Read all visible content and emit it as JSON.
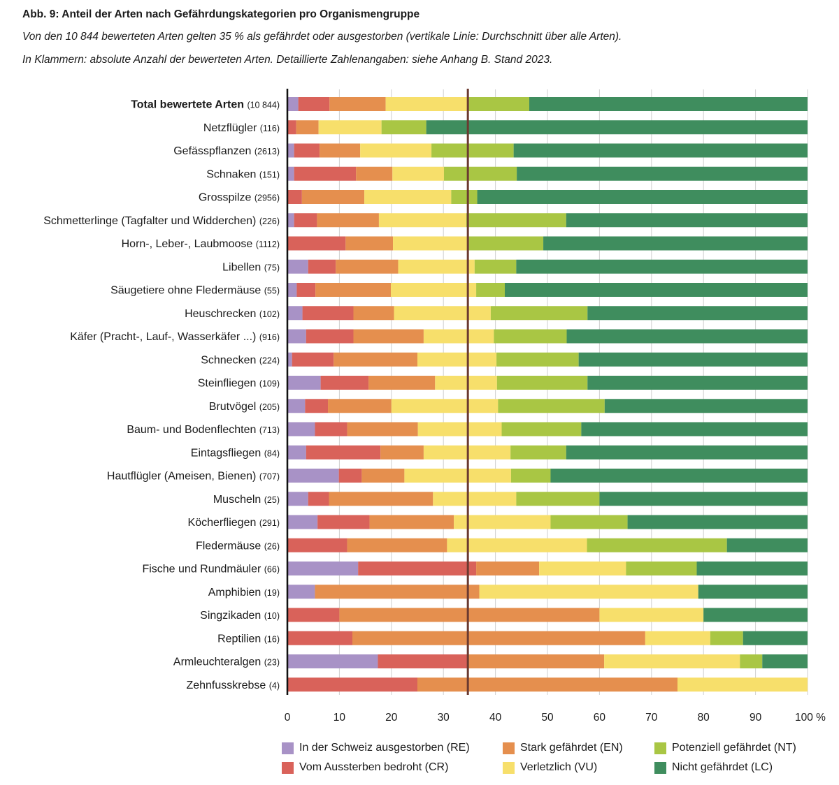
{
  "header": {
    "title": "Abb. 9: Anteil der Arten nach Gefährdungskategorien pro Organismengruppe",
    "subtitle_1": "Von den 10 844 bewerteten Arten gelten 35 % als gefährdet oder ausgestorben (vertikale Linie: Durchschnitt über alle Arten).",
    "subtitle_2": "In Klammern: absolute Anzahl der bewerteten Arten. Detaillierte Zahlenangaben: siehe Anhang B. Stand 2023."
  },
  "colors": {
    "RE": "#a892c6",
    "CR": "#d9625a",
    "EN": "#e58f4e",
    "VU": "#f7df6b",
    "NT": "#a9c644",
    "LC": "#3f8d5e",
    "average_line": "#6b3a30",
    "grid": "#cfcfcf",
    "axis": "#111111"
  },
  "chart_data": {
    "type": "bar",
    "orientation": "horizontal",
    "stacked": true,
    "xlabel": "",
    "ylabel": "",
    "xlim": [
      0,
      100
    ],
    "x_ticks": [
      0,
      10,
      20,
      30,
      40,
      50,
      60,
      70,
      80,
      90,
      100
    ],
    "x_tick_labels": [
      "0",
      "10",
      "20",
      "30",
      "40",
      "50",
      "60",
      "70",
      "80",
      "90",
      "100 %"
    ],
    "grid": true,
    "average_line": {
      "value": 34.7,
      "label": "Durchschnitt über alle Arten"
    },
    "legend": [
      {
        "key": "RE",
        "label": "In der Schweiz ausgestorben (RE)"
      },
      {
        "key": "CR",
        "label": "Vom Aussterben bedroht (CR)"
      },
      {
        "key": "EN",
        "label": "Stark gefährdet (EN)"
      },
      {
        "key": "VU",
        "label": "Verletzlich (VU)"
      },
      {
        "key": "NT",
        "label": "Potenziell gefährdet (NT)"
      },
      {
        "key": "LC",
        "label": "Nicht gefährdet (LC)"
      }
    ],
    "series_order": [
      "RE",
      "CR",
      "EN",
      "VU",
      "NT",
      "LC"
    ],
    "rows": [
      {
        "name": "Total bewertete Arten",
        "count": "(10 844)",
        "bold": true,
        "values": {
          "RE": 2.1,
          "CR": 6.0,
          "EN": 10.8,
          "VU": 15.8,
          "NT": 11.8,
          "LC": 53.5
        }
      },
      {
        "name": "Netzflügler",
        "count": "(116)",
        "values": {
          "RE": 0,
          "CR": 1.7,
          "EN": 4.3,
          "VU": 12.1,
          "NT": 8.6,
          "LC": 73.3
        }
      },
      {
        "name": "Gefässpflanzen",
        "count": "(2613)",
        "values": {
          "RE": 1.3,
          "CR": 4.9,
          "EN": 7.8,
          "VU": 13.7,
          "NT": 15.8,
          "LC": 56.5
        }
      },
      {
        "name": "Schnaken",
        "count": "(151)",
        "values": {
          "RE": 1.3,
          "CR": 11.9,
          "EN": 7.0,
          "VU": 9.9,
          "NT": 14.0,
          "LC": 55.9
        }
      },
      {
        "name": "Grosspilze",
        "count": "(2956)",
        "values": {
          "RE": 0,
          "CR": 2.8,
          "EN": 12.0,
          "VU": 16.7,
          "NT": 5.0,
          "LC": 63.5
        }
      },
      {
        "name": "Schmetterlinge (Tagfalter und Widderchen)",
        "count": "(226)",
        "values": {
          "RE": 1.3,
          "CR": 4.4,
          "EN": 11.9,
          "VU": 16.8,
          "NT": 19.2,
          "LC": 46.4
        }
      },
      {
        "name": "Horn-, Leber-, Laubmoose",
        "count": "(1112)",
        "values": {
          "RE": 0,
          "CR": 11.2,
          "EN": 9.1,
          "VU": 14.4,
          "NT": 14.5,
          "LC": 50.8
        }
      },
      {
        "name": "Libellen",
        "count": "(75)",
        "values": {
          "RE": 4.0,
          "CR": 5.3,
          "EN": 12.0,
          "VU": 14.7,
          "NT": 8.0,
          "LC": 56.0
        }
      },
      {
        "name": "Säugetiere ohne Fledermäuse",
        "count": "(55)",
        "values": {
          "RE": 1.8,
          "CR": 3.6,
          "EN": 14.5,
          "VU": 16.4,
          "NT": 5.5,
          "LC": 58.2
        }
      },
      {
        "name": "Heuschrecken",
        "count": "(102)",
        "values": {
          "RE": 2.9,
          "CR": 9.8,
          "EN": 7.8,
          "VU": 18.6,
          "NT": 18.6,
          "LC": 42.3
        }
      },
      {
        "name": "Käfer (Pracht-, Lauf-, Wasserkäfer ...)",
        "count": "(916)",
        "values": {
          "RE": 3.6,
          "CR": 9.1,
          "EN": 13.5,
          "VU": 13.5,
          "NT": 14.0,
          "LC": 46.3
        }
      },
      {
        "name": "Schnecken",
        "count": "(224)",
        "values": {
          "RE": 0.9,
          "CR": 8.0,
          "EN": 16.1,
          "VU": 15.2,
          "NT": 15.8,
          "LC": 44.0
        }
      },
      {
        "name": "Steinfliegen",
        "count": "(109)",
        "values": {
          "RE": 6.4,
          "CR": 9.2,
          "EN": 12.8,
          "VU": 11.9,
          "NT": 17.4,
          "LC": 42.3
        }
      },
      {
        "name": "Brutvögel",
        "count": "(205)",
        "values": {
          "RE": 3.4,
          "CR": 4.4,
          "EN": 12.2,
          "VU": 20.5,
          "NT": 20.5,
          "LC": 39.0
        }
      },
      {
        "name": "Baum- und Bodenflechten",
        "count": "(713)",
        "values": {
          "RE": 5.3,
          "CR": 6.2,
          "EN": 13.6,
          "VU": 16.1,
          "NT": 15.3,
          "LC": 43.5
        }
      },
      {
        "name": "Eintagsfliegen",
        "count": "(84)",
        "values": {
          "RE": 3.6,
          "CR": 14.3,
          "EN": 8.3,
          "VU": 16.7,
          "NT": 10.7,
          "LC": 46.4
        }
      },
      {
        "name": "Hautflügler (Ameisen, Bienen)",
        "count": "(707)",
        "values": {
          "RE": 9.9,
          "CR": 4.4,
          "EN": 8.2,
          "VU": 20.5,
          "NT": 7.6,
          "LC": 49.4
        }
      },
      {
        "name": "Muscheln",
        "count": "(25)",
        "values": {
          "RE": 4.0,
          "CR": 4.0,
          "EN": 20.0,
          "VU": 16.0,
          "NT": 16.0,
          "LC": 40.0
        }
      },
      {
        "name": "Köcherfliegen",
        "count": "(291)",
        "values": {
          "RE": 5.8,
          "CR": 10.0,
          "EN": 16.2,
          "VU": 18.6,
          "NT": 14.8,
          "LC": 34.6
        }
      },
      {
        "name": "Fledermäuse",
        "count": "(26)",
        "values": {
          "RE": 0,
          "CR": 11.5,
          "EN": 19.2,
          "VU": 26.9,
          "NT": 26.9,
          "LC": 15.5
        }
      },
      {
        "name": "Fische und Rundmäuler",
        "count": "(66)",
        "values": {
          "RE": 13.6,
          "CR": 22.7,
          "EN": 12.1,
          "VU": 16.7,
          "NT": 13.6,
          "LC": 21.3
        }
      },
      {
        "name": "Amphibien",
        "count": "(19)",
        "values": {
          "RE": 5.3,
          "CR": 0,
          "EN": 31.6,
          "VU": 42.1,
          "NT": 0,
          "LC": 21.0
        }
      },
      {
        "name": "Singzikaden",
        "count": "(10)",
        "values": {
          "RE": 0,
          "CR": 10.0,
          "EN": 50.0,
          "VU": 20.0,
          "NT": 0,
          "LC": 20.0
        }
      },
      {
        "name": "Reptilien",
        "count": "(16)",
        "values": {
          "RE": 0,
          "CR": 12.5,
          "EN": 56.3,
          "VU": 12.5,
          "NT": 6.3,
          "LC": 12.4
        }
      },
      {
        "name": "Armleuchteralgen",
        "count": "(23)",
        "values": {
          "RE": 17.4,
          "CR": 17.4,
          "EN": 26.1,
          "VU": 26.1,
          "NT": 4.3,
          "LC": 8.7
        }
      },
      {
        "name": "Zehnfusskrebse",
        "count": "(4)",
        "values": {
          "RE": 0,
          "CR": 25.0,
          "EN": 50.0,
          "VU": 25.0,
          "NT": 0,
          "LC": 0
        }
      }
    ]
  }
}
